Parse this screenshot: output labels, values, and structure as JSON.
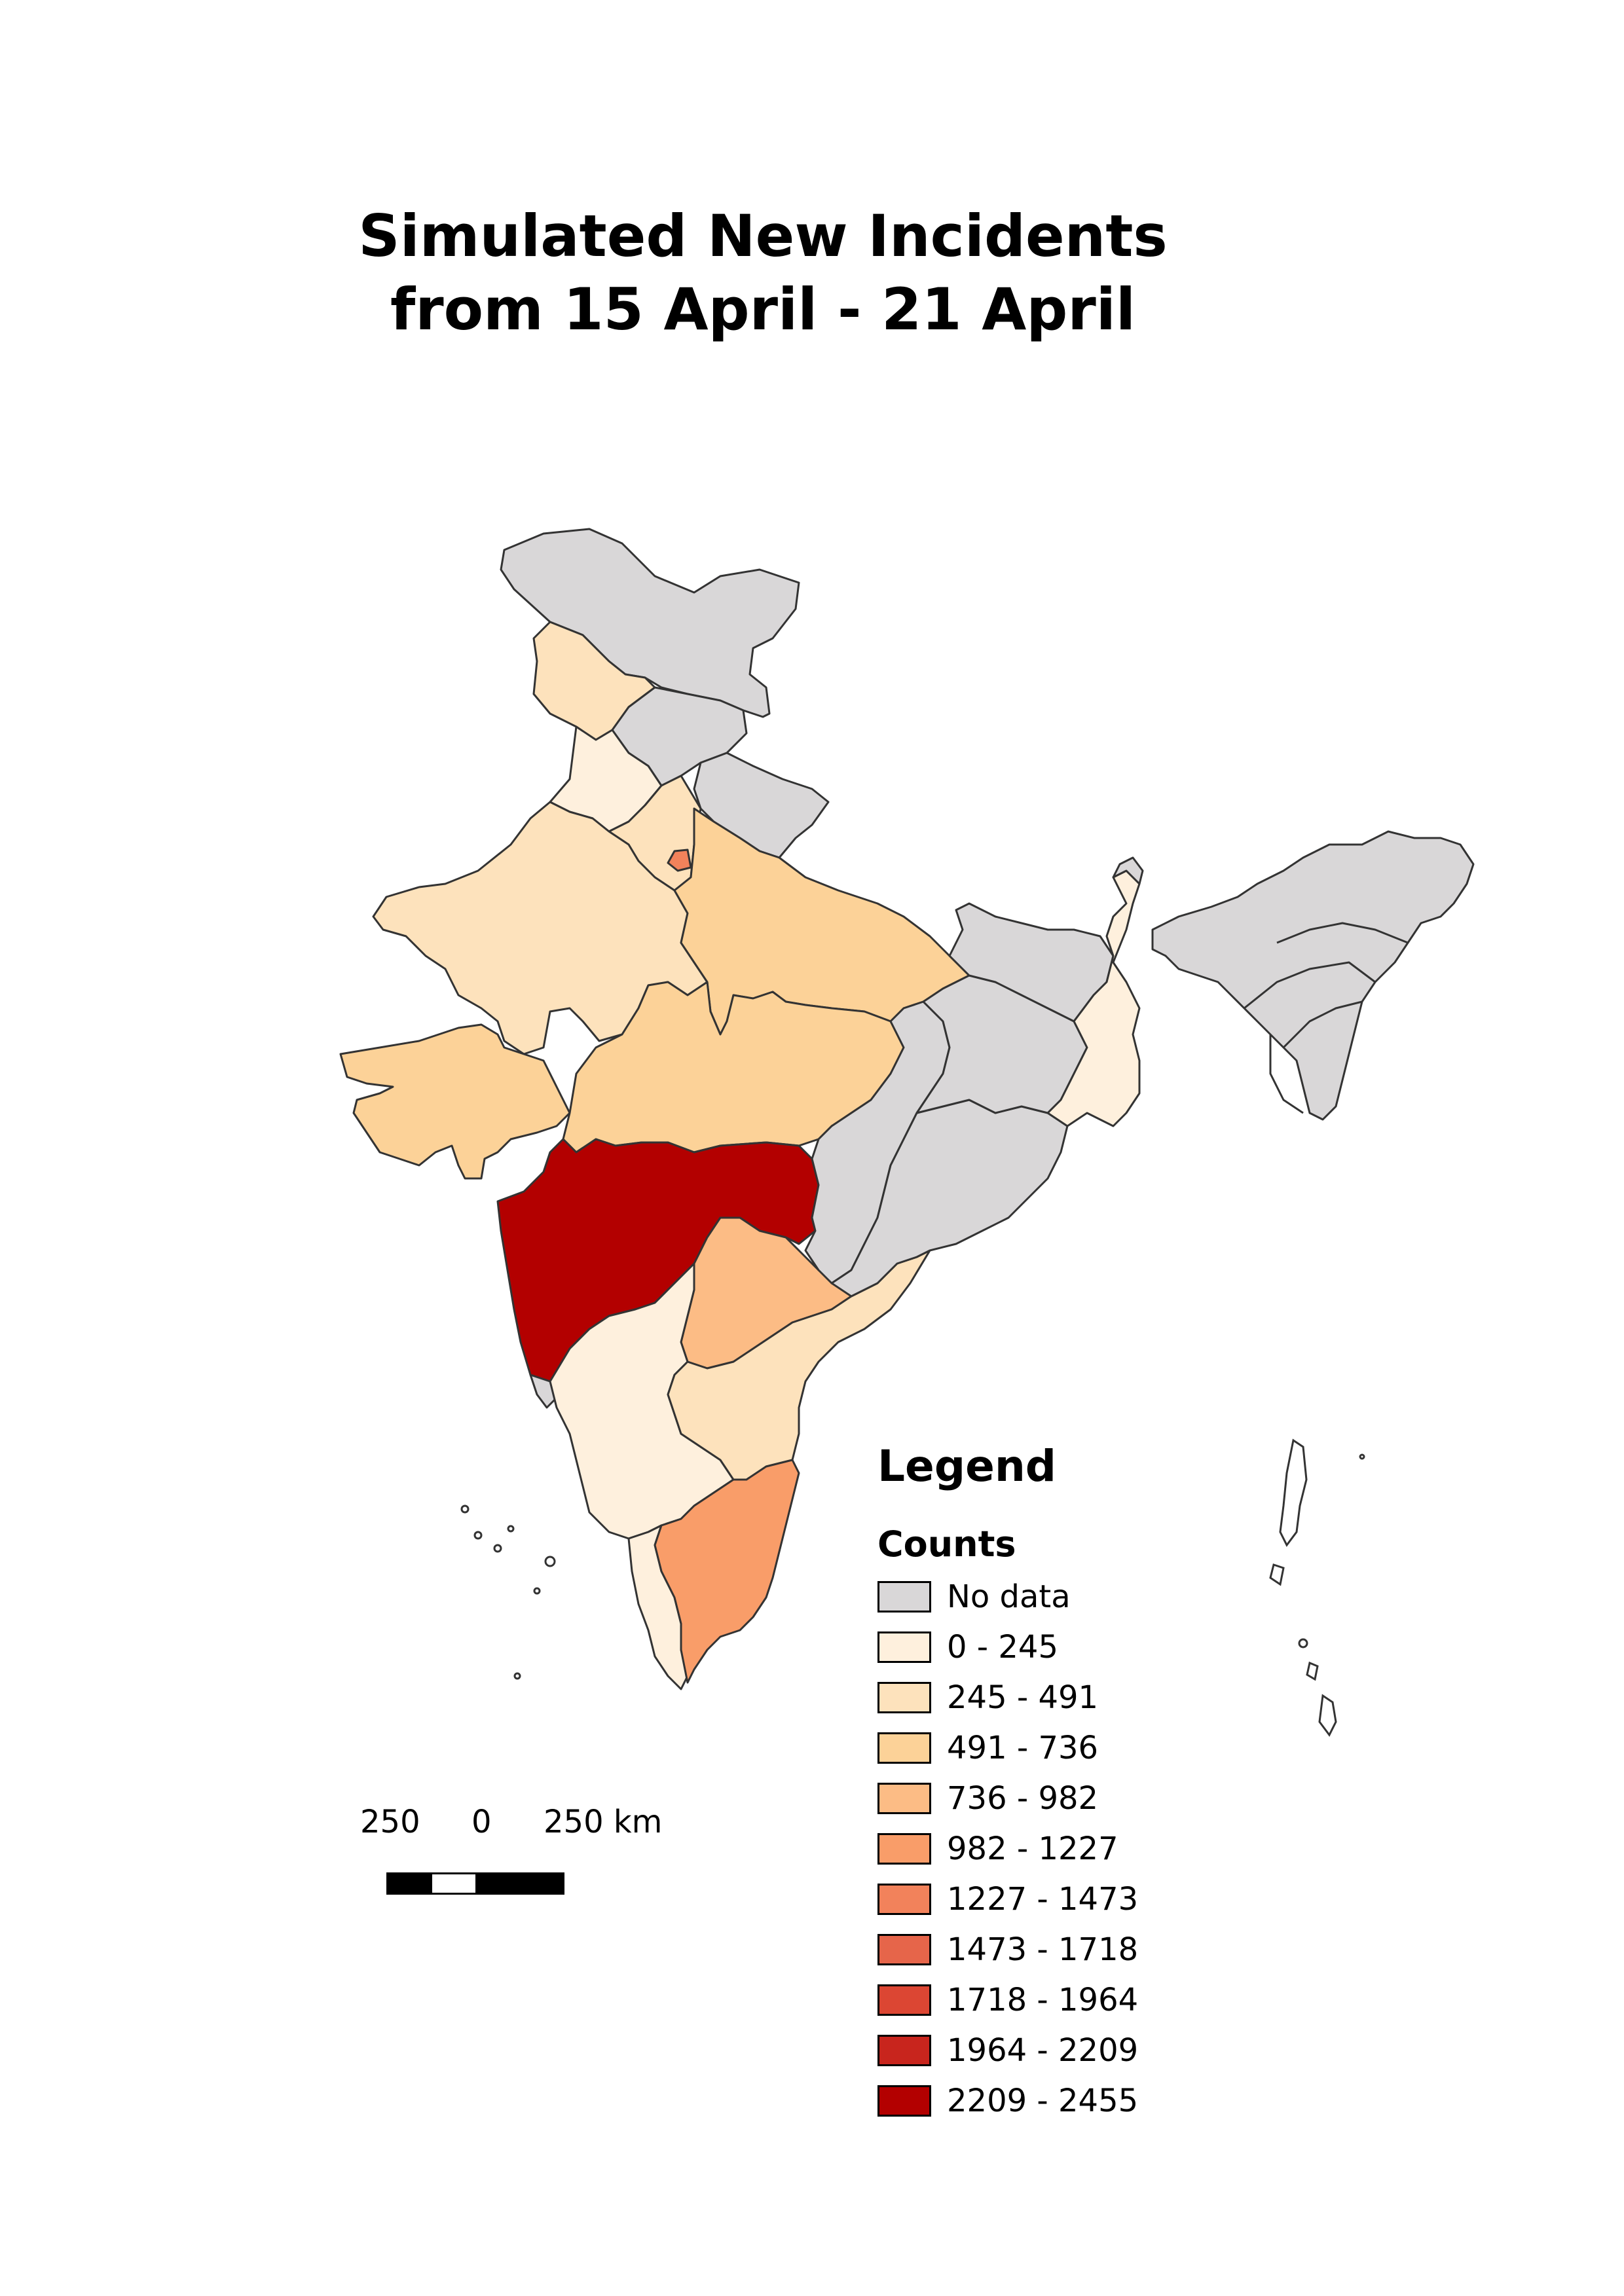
{
  "title": {
    "line1": "Simulated New Incidents",
    "line2": "from 15 April - 21 April"
  },
  "legend": {
    "heading": "Legend",
    "subheading": "Counts",
    "items": [
      {
        "label": "No data",
        "color": "#d9d7d8"
      },
      {
        "label": "0 - 245",
        "color": "#fef0dd"
      },
      {
        "label": "245 - 491",
        "color": "#fde2bc"
      },
      {
        "label": "491 - 736",
        "color": "#fcd298"
      },
      {
        "label": "736 - 982",
        "color": "#fcbc85"
      },
      {
        "label": "982 - 1227",
        "color": "#f99d69"
      },
      {
        "label": "1227 - 1473",
        "color": "#f2825b"
      },
      {
        "label": "1473 - 1718",
        "color": "#e6654a"
      },
      {
        "label": "1718 - 1964",
        "color": "#dc4633"
      },
      {
        "label": "1964 - 2209",
        "color": "#c8251d"
      },
      {
        "label": "2209 - 2455",
        "color": "#b30000"
      }
    ]
  },
  "scale_bar": {
    "left_label": "250",
    "mid_label": "0",
    "right_label": "250 km"
  },
  "regions": [
    {
      "name": "Jammu and Kashmir",
      "class": "No data"
    },
    {
      "name": "Himachal Pradesh",
      "class": "No data"
    },
    {
      "name": "Uttarakhand",
      "class": "No data"
    },
    {
      "name": "Ladakh",
      "class": "245 - 491"
    },
    {
      "name": "Punjab",
      "class": "0 - 245"
    },
    {
      "name": "Haryana",
      "class": "245 - 491"
    },
    {
      "name": "Delhi",
      "class": "1227 - 1473"
    },
    {
      "name": "Rajasthan",
      "class": "245 - 491"
    },
    {
      "name": "Uttar Pradesh",
      "class": "491 - 736"
    },
    {
      "name": "Gujarat",
      "class": "491 - 736"
    },
    {
      "name": "Madhya Pradesh",
      "class": "491 - 736"
    },
    {
      "name": "Maharashtra",
      "class": "2209 - 2455"
    },
    {
      "name": "Telangana",
      "class": "736 - 982"
    },
    {
      "name": "Andhra Pradesh",
      "class": "245 - 491"
    },
    {
      "name": "Karnataka",
      "class": "0 - 245"
    },
    {
      "name": "Kerala",
      "class": "0 - 245"
    },
    {
      "name": "Tamil Nadu",
      "class": "982 - 1227"
    },
    {
      "name": "Goa",
      "class": "No data"
    },
    {
      "name": "Chhattisgarh",
      "class": "No data"
    },
    {
      "name": "Odisha",
      "class": "No data"
    },
    {
      "name": "Jharkhand",
      "class": "No data"
    },
    {
      "name": "Bihar",
      "class": "No data"
    },
    {
      "name": "West Bengal",
      "class": "0 - 245"
    },
    {
      "name": "Sikkim",
      "class": "No data"
    },
    {
      "name": "North-East states",
      "class": "No data"
    }
  ]
}
